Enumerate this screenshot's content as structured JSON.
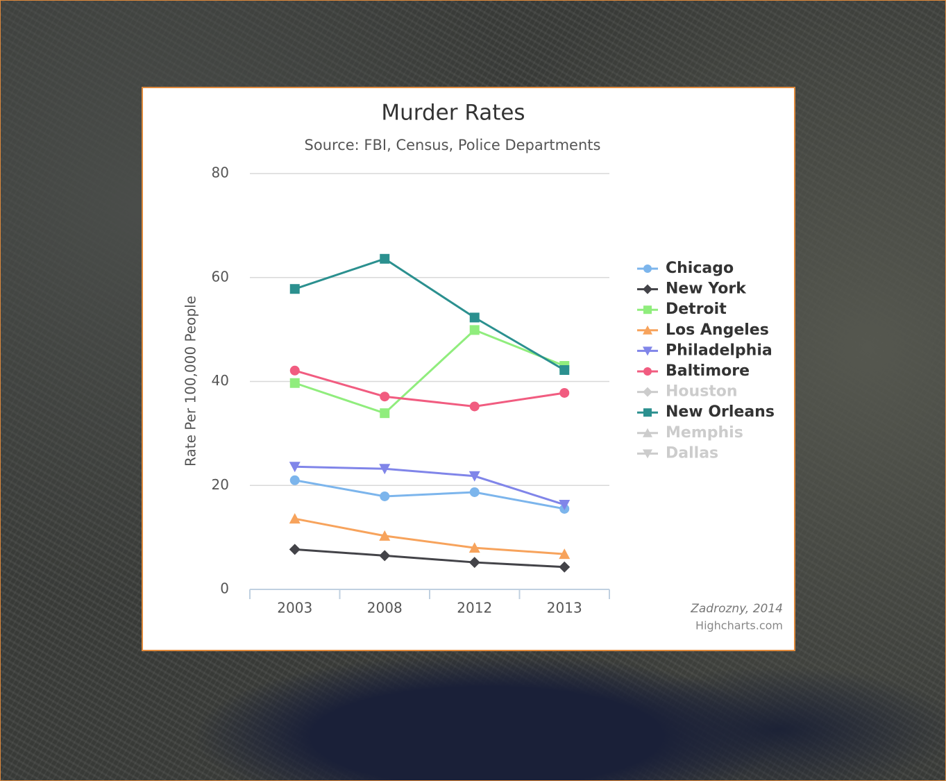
{
  "chart_data": {
    "type": "line",
    "title": "Murder Rates",
    "subtitle": "Source: FBI, Census, Police Departments",
    "y_label": "Rate Per 100,000 People",
    "credit_note": "Zadrozny, 2014",
    "credit": "Highcharts.com",
    "categories": [
      "2003",
      "2008",
      "2012",
      "2013"
    ],
    "ylim": [
      0,
      80
    ],
    "yticks": [
      0,
      20,
      40,
      60,
      80
    ],
    "grid": true,
    "legend": "right",
    "series": [
      {
        "name": "Chicago",
        "color": "#7cb5ec",
        "visible": true,
        "values": [
          21.0,
          17.9,
          18.7,
          15.5
        ]
      },
      {
        "name": "New York",
        "color": "#434348",
        "visible": true,
        "values": [
          7.7,
          6.5,
          5.2,
          4.3
        ]
      },
      {
        "name": "Detroit",
        "color": "#90ed7d",
        "visible": true,
        "values": [
          39.7,
          33.9,
          49.9,
          43.0
        ]
      },
      {
        "name": "Los Angeles",
        "color": "#f7a35c",
        "visible": true,
        "values": [
          13.6,
          10.3,
          8.0,
          6.8
        ]
      },
      {
        "name": "Philadelphia",
        "color": "#8085e9",
        "visible": true,
        "values": [
          23.6,
          23.2,
          21.8,
          16.3
        ]
      },
      {
        "name": "Baltimore",
        "color": "#f15c80",
        "visible": true,
        "values": [
          42.1,
          37.1,
          35.2,
          37.8
        ]
      },
      {
        "name": "Houston",
        "color": "#e4d354",
        "visible": false,
        "values": [
          null,
          null,
          null,
          null
        ]
      },
      {
        "name": "New Orleans",
        "color": "#2b908f",
        "visible": true,
        "values": [
          57.8,
          63.6,
          52.3,
          42.2
        ]
      },
      {
        "name": "Memphis",
        "color": "#f45b5b",
        "visible": false,
        "values": [
          null,
          null,
          null,
          null
        ]
      },
      {
        "name": "Dallas",
        "color": "#91e8e1",
        "visible": false,
        "values": [
          null,
          null,
          null,
          null
        ]
      }
    ]
  }
}
